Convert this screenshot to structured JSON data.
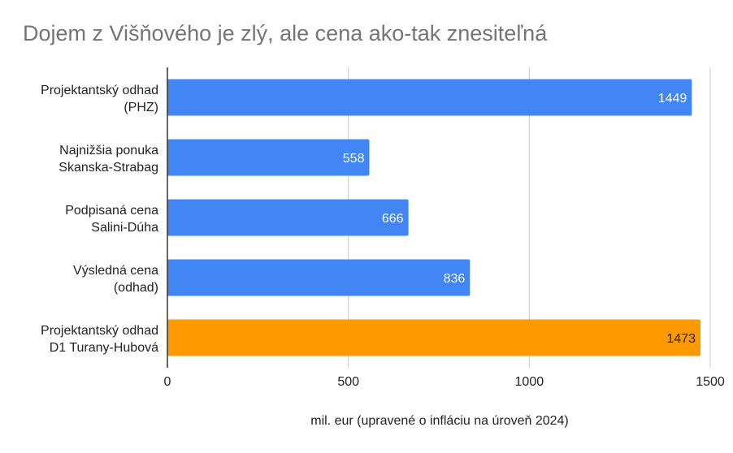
{
  "chart_data": {
    "type": "bar",
    "orientation": "horizontal",
    "title": "Dojem z Višňového je zlý, ale cena ako-tak znesiteľná",
    "xlabel": "mil. eur (upravené o infláciu na úroveň 2024)",
    "ylabel": "",
    "xlim": [
      0,
      1500
    ],
    "ticks": [
      0,
      500,
      1000,
      1500
    ],
    "grid": true,
    "legend": "none",
    "categories": [
      [
        "Projektantský odhad",
        "(PHZ)"
      ],
      [
        "Najnižšia ponuka",
        "Skanska-Strabag"
      ],
      [
        "Podpisaná cena",
        "Salini-Dúha"
      ],
      [
        "Výsledná cena",
        "(odhad)"
      ],
      [
        "Projektantský odhad",
        "D1 Turany-Hubová"
      ]
    ],
    "values": [
      1449,
      558,
      666,
      836,
      1473
    ],
    "colors": [
      "#4285f4",
      "#4285f4",
      "#4285f4",
      "#4285f4",
      "#ff9900"
    ],
    "label_colors": [
      "#ffffff",
      "#ffffff",
      "#ffffff",
      "#ffffff",
      "#222222"
    ]
  }
}
